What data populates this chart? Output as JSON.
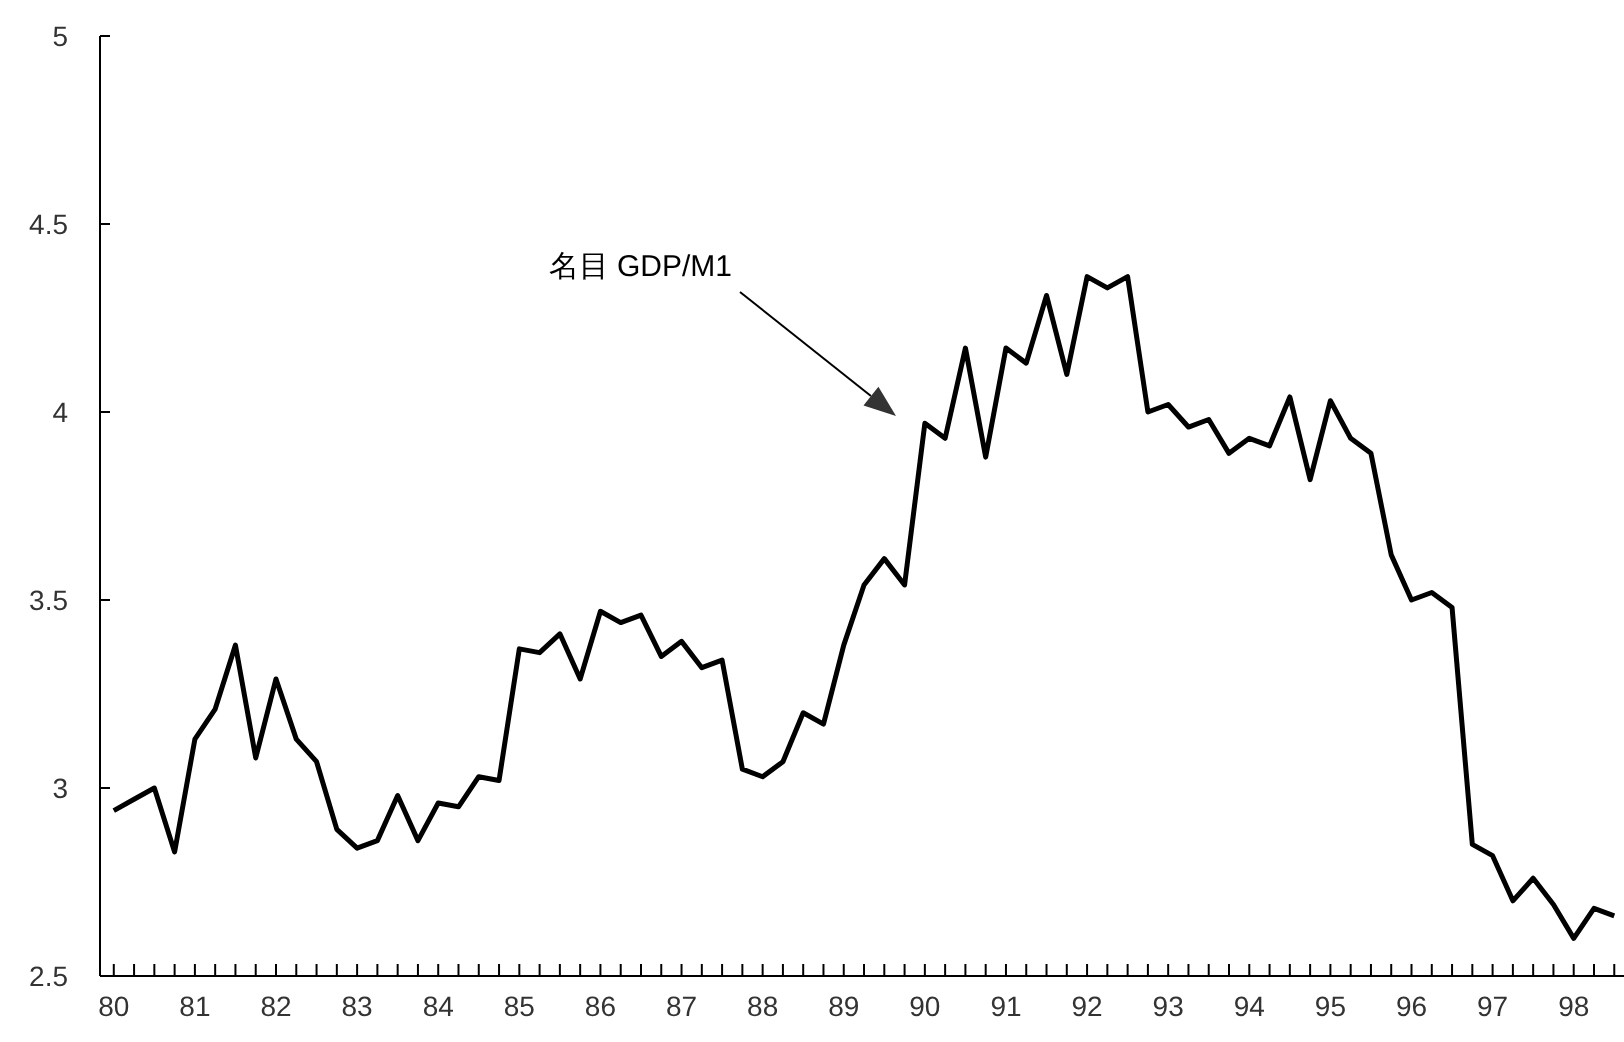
{
  "chart_data": {
    "type": "line",
    "x": [
      1980,
      1980.25,
      1980.5,
      1980.75,
      1981,
      1981.25,
      1981.5,
      1981.75,
      1982,
      1982.25,
      1982.5,
      1982.75,
      1983,
      1983.25,
      1983.5,
      1983.75,
      1984,
      1984.25,
      1984.5,
      1984.75,
      1985,
      1985.25,
      1985.5,
      1985.75,
      1986,
      1986.25,
      1986.5,
      1986.75,
      1987,
      1987.25,
      1987.5,
      1987.75,
      1988,
      1988.25,
      1988.5,
      1988.75,
      1989,
      1989.25,
      1989.5,
      1989.75,
      1990,
      1990.25,
      1990.5,
      1990.75,
      1991,
      1991.25,
      1991.5,
      1991.75,
      1992,
      1992.25,
      1992.5,
      1992.75,
      1993,
      1993.25,
      1993.5,
      1993.75,
      1994,
      1994.25,
      1994.5,
      1994.75,
      1995,
      1995.25,
      1995.5,
      1995.75,
      1996,
      1996.25,
      1996.5,
      1996.75,
      1997,
      1997.25,
      1997.5,
      1997.75,
      1998,
      1998.25,
      1998.5
    ],
    "series": [
      {
        "color": "#000000",
        "values": [
          2.94,
          2.97,
          3.0,
          2.83,
          3.13,
          3.21,
          3.38,
          3.08,
          3.29,
          3.13,
          3.07,
          2.89,
          2.84,
          2.86,
          2.98,
          2.86,
          2.96,
          2.95,
          3.03,
          3.02,
          3.37,
          3.36,
          3.41,
          3.29,
          3.47,
          3.44,
          3.46,
          3.35,
          3.39,
          3.32,
          3.34,
          3.05,
          3.03,
          3.07,
          3.2,
          3.17,
          3.38,
          3.54,
          3.61,
          3.54,
          3.97,
          3.93,
          4.17,
          3.88,
          4.17,
          4.13,
          4.31,
          4.1,
          4.36,
          4.33,
          4.36,
          4.0,
          4.02,
          3.96,
          3.98,
          3.89,
          3.93,
          3.91,
          4.04,
          3.82,
          4.03,
          3.93,
          3.89,
          3.62,
          3.5,
          3.52,
          3.48,
          2.85,
          2.82,
          2.7,
          2.76,
          2.69,
          2.6,
          2.68,
          2.66
        ]
      }
    ],
    "xlim": [
      1979.83,
      1998.62
    ],
    "ylim": [
      2.5,
      5
    ],
    "yticks": [
      2.5,
      3,
      3.5,
      4,
      4.5,
      5
    ],
    "xticks": [
      {
        "value": 1980,
        "label": "80"
      },
      {
        "value": 1980.5,
        "label": null
      },
      {
        "value": 1981,
        "label": "81"
      },
      {
        "value": 1981.5,
        "label": null
      },
      {
        "value": 1982,
        "label": "82"
      },
      {
        "value": 1982.5,
        "label": null
      },
      {
        "value": 1983,
        "label": "83"
      },
      {
        "value": 1983.5,
        "label": null
      },
      {
        "value": 1984,
        "label": "84"
      },
      {
        "value": 1984.5,
        "label": null
      },
      {
        "value": 1985,
        "label": "85"
      },
      {
        "value": 1985.5,
        "label": null
      },
      {
        "value": 1986,
        "label": "86"
      },
      {
        "value": 1986.5,
        "label": null
      },
      {
        "value": 1987,
        "label": "87"
      },
      {
        "value": 1987.5,
        "label": null
      },
      {
        "value": 1988,
        "label": "88"
      },
      {
        "value": 1988.5,
        "label": null
      },
      {
        "value": 1989,
        "label": "89"
      },
      {
        "value": 1989.5,
        "label": null
      },
      {
        "value": 1990,
        "label": "90"
      },
      {
        "value": 1990.5,
        "label": null
      },
      {
        "value": 1991,
        "label": "91"
      },
      {
        "value": 1991.5,
        "label": null
      },
      {
        "value": 1992,
        "label": "92"
      },
      {
        "value": 1992.5,
        "label": null
      },
      {
        "value": 1993,
        "label": "93"
      },
      {
        "value": 1993.5,
        "label": null
      },
      {
        "value": 1994,
        "label": "94"
      },
      {
        "value": 1994.5,
        "label": null
      },
      {
        "value": 1995,
        "label": "95"
      },
      {
        "value": 1995.5,
        "label": null
      },
      {
        "value": 1996,
        "label": "96"
      },
      {
        "value": 1996.5,
        "label": null
      },
      {
        "value": 1997,
        "label": "97"
      },
      {
        "value": 1997.5,
        "label": null
      },
      {
        "value": 1998,
        "label": "98"
      },
      {
        "value": 1998.5,
        "label": null
      }
    ],
    "annotations": [
      "名目 GDP/M1"
    ]
  }
}
